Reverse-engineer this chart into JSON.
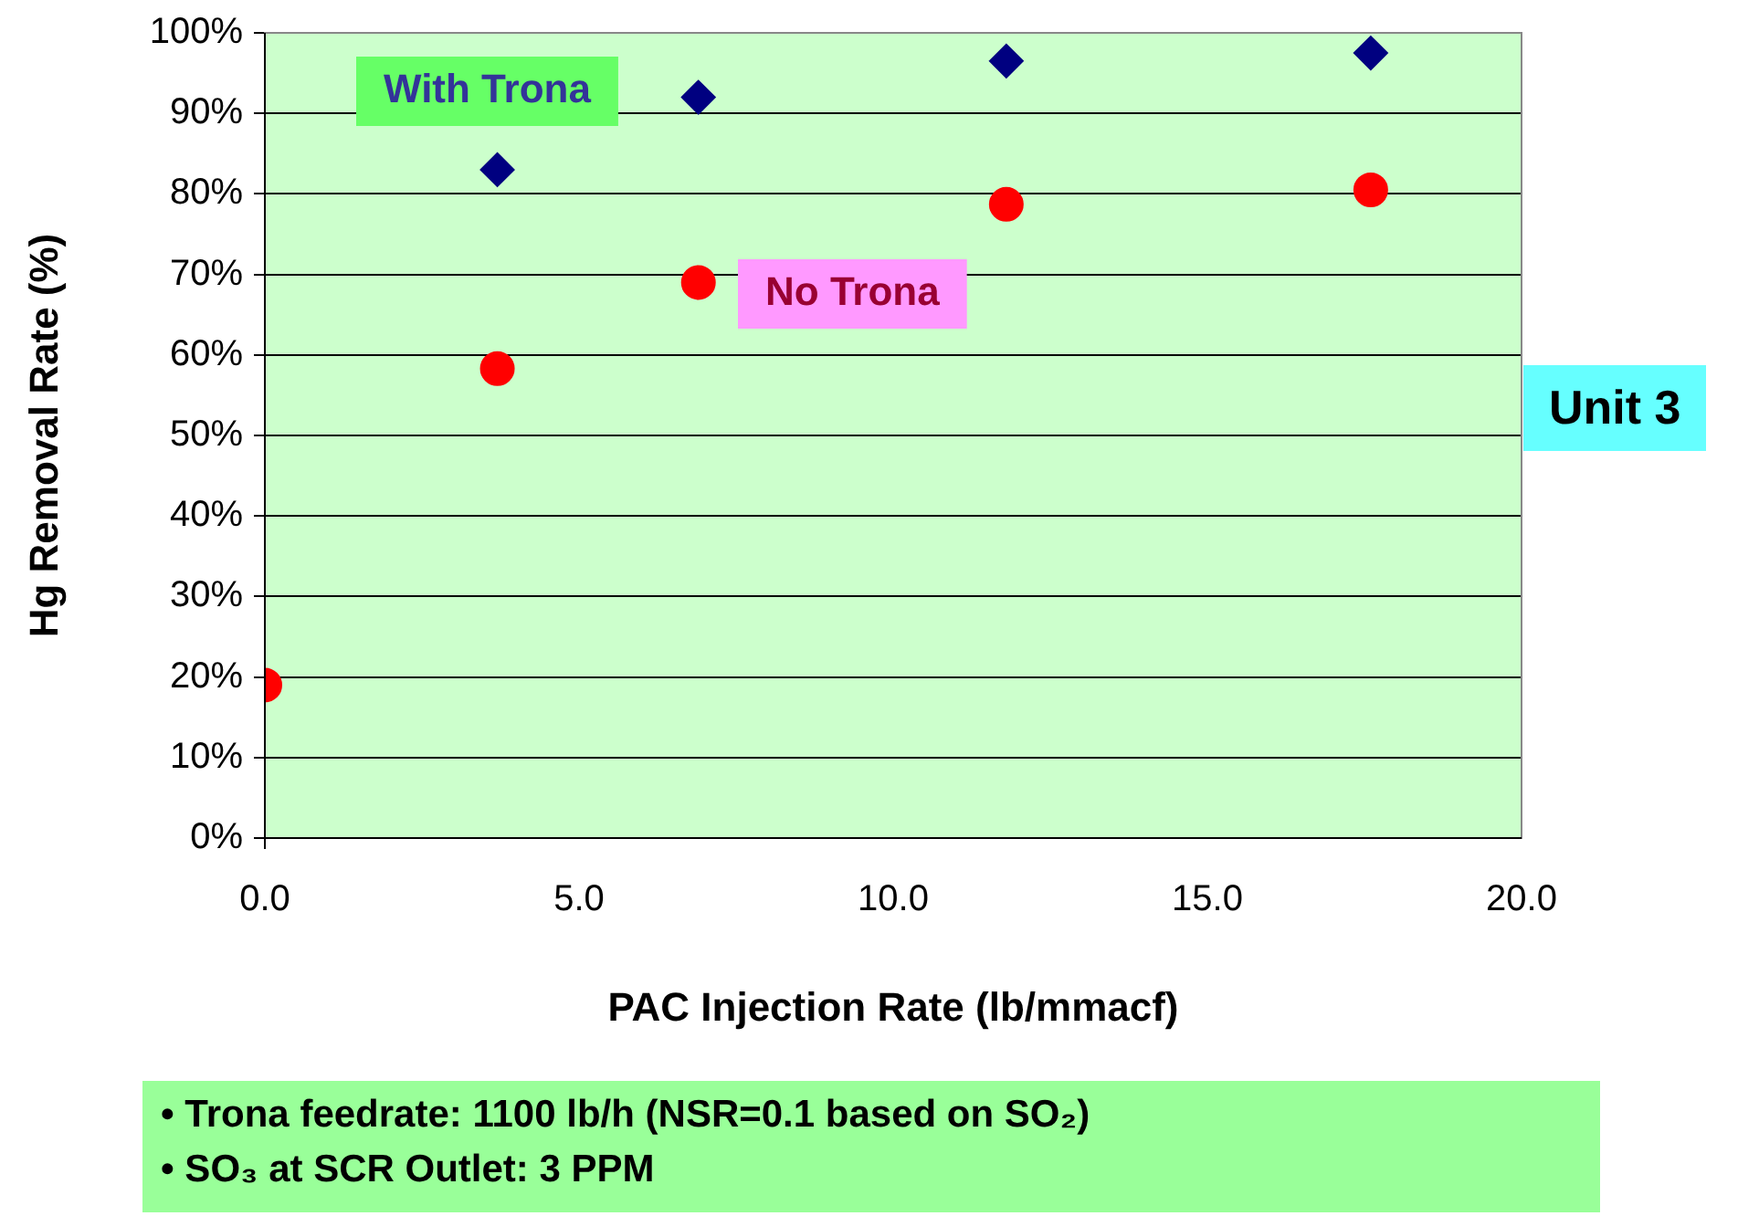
{
  "chart_data": {
    "type": "scatter",
    "xlabel": "PAC Injection Rate (lb/mmacf)",
    "ylabel": "Hg Removal Rate (%)",
    "series": [
      {
        "name": "With Trona",
        "color": "#000080",
        "marker": "diamond",
        "x": [
          3.7,
          6.9,
          11.8,
          17.6
        ],
        "values": [
          83,
          92,
          96.5,
          97.5
        ]
      },
      {
        "name": "No Trona",
        "color": "#ff0000",
        "marker": "circle",
        "x": [
          0,
          3.7,
          6.9,
          11.8,
          17.6
        ],
        "values": [
          19,
          58.3,
          69,
          78.7,
          80.5
        ]
      }
    ],
    "xlim": [
      0,
      20
    ],
    "xticks": [
      {
        "value": 0,
        "label": "0.0"
      },
      {
        "value": 5,
        "label": "5.0"
      },
      {
        "value": 10,
        "label": "10.0"
      },
      {
        "value": 15,
        "label": "15.0"
      },
      {
        "value": 20,
        "label": "20.0"
      }
    ],
    "ylim": [
      0,
      100
    ],
    "yticks": [
      {
        "value": 0,
        "label": "0%"
      },
      {
        "value": 10,
        "label": "10%"
      },
      {
        "value": 20,
        "label": "20%"
      },
      {
        "value": 30,
        "label": "30%"
      },
      {
        "value": 40,
        "label": "40%"
      },
      {
        "value": 50,
        "label": "50%"
      },
      {
        "value": 60,
        "label": "60%"
      },
      {
        "value": 70,
        "label": "70%"
      },
      {
        "value": 80,
        "label": "80%"
      },
      {
        "value": 90,
        "label": "90%"
      },
      {
        "value": 100,
        "label": "100%"
      }
    ],
    "grid": "y",
    "legend": false,
    "annotations": [
      "Unit 3",
      "• Trona feedrate: 1100 lb/h (NSR=0.1 based on SO₂)",
      "• SO₃ at SCR Outlet: 3 PPM"
    ]
  }
}
